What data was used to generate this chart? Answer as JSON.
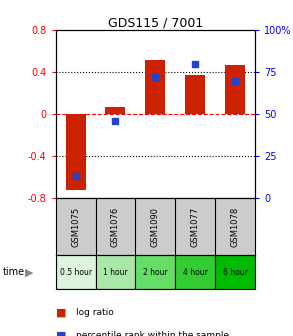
{
  "title": "GDS115 / 7001",
  "categories": [
    "GSM1075",
    "GSM1076",
    "GSM1090",
    "GSM1077",
    "GSM1078"
  ],
  "time_labels": [
    "0.5 hour",
    "1 hour",
    "2 hour",
    "4 hour",
    "6 hour"
  ],
  "green_shades": [
    "#ddf5dd",
    "#aae8aa",
    "#66dd66",
    "#33cc33",
    "#00bb00"
  ],
  "log_ratio": [
    -0.72,
    0.07,
    0.52,
    0.37,
    0.47
  ],
  "percentile": [
    13,
    46,
    72,
    80,
    70
  ],
  "bar_color": "#cc2200",
  "dot_color": "#2244cc",
  "ylim_left": [
    -0.8,
    0.8
  ],
  "ylim_right": [
    0,
    100
  ],
  "yticks_left": [
    -0.8,
    -0.4,
    0.0,
    0.4,
    0.8
  ],
  "yticks_right": [
    0,
    25,
    50,
    75,
    100
  ],
  "ytick_labels_left": [
    "-0.8",
    "-0.4",
    "0",
    "0.4",
    "0.8"
  ],
  "ytick_labels_right": [
    "0",
    "25",
    "50",
    "75",
    "100%"
  ],
  "hlines_dotted": [
    -0.4,
    0.4
  ],
  "hline_dashed": 0.0,
  "legend_log": "log ratio",
  "legend_pct": "percentile rank within the sample",
  "bg_color": "#ffffff",
  "category_bg": "#cccccc"
}
